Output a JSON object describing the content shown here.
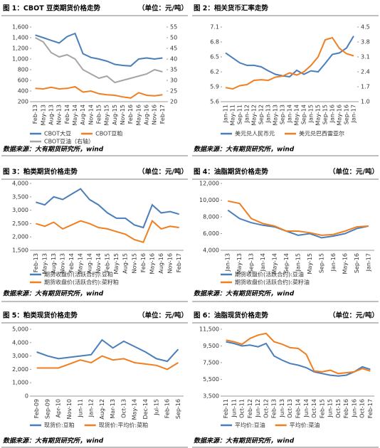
{
  "chart_data": [
    {
      "type": "line",
      "title": "图 1：CBOT 豆类期货价格走势",
      "unit": "（单位：元/吨）",
      "source": "数据来源：大有期货研究所，wind",
      "categories": [
        "Feb-13",
        "May-13",
        "Aug-13",
        "Nov-13",
        "Feb-14",
        "May-14",
        "Aug-14",
        "Nov-14",
        "Feb-15",
        "May-15",
        "Aug-15",
        "Nov-15",
        "Feb-16",
        "May-16",
        "Aug-16",
        "Nov-16",
        "Feb-17"
      ],
      "ylim": [
        200,
        1600
      ],
      "yticks": [
        200,
        400,
        600,
        800,
        {
          "value": 1000,
          "label": "1,000"
        },
        {
          "value": 1200,
          "label": "1,200"
        },
        {
          "value": 1400,
          "label": "1,400"
        },
        {
          "value": 1600,
          "label": "1,600"
        }
      ],
      "y2lim": [
        20,
        55
      ],
      "y2ticks": [
        20,
        25,
        30,
        35,
        40,
        45,
        50,
        55
      ],
      "series": [
        {
          "name": "CBOT大豆",
          "color": "#4a7ebb",
          "values": [
            1450,
            1400,
            1350,
            1300,
            1420,
            1480,
            1100,
            1030,
            1000,
            960,
            900,
            880,
            870,
            1000,
            1020,
            1000,
            1020
          ]
        },
        {
          "name": "CBOT豆粕",
          "color": "#f07f22",
          "values": [
            450,
            440,
            470,
            440,
            450,
            480,
            380,
            400,
            350,
            330,
            320,
            290,
            270,
            370,
            320,
            310,
            330
          ]
        },
        {
          "name": "CBOT豆油（右轴）",
          "color": "#a5a5a5",
          "axis": "y2",
          "values": [
            50,
            48,
            43,
            41,
            42,
            40,
            35,
            33,
            31,
            32,
            29,
            30,
            31,
            32,
            33,
            35,
            34
          ]
        }
      ]
    },
    {
      "type": "line",
      "title": "图 2：相关货币汇率走势",
      "source": "数据来源：大有期货研究所，wind",
      "categories": [
        "Jan-11",
        "May-11",
        "Sep-11",
        "Jan-12",
        "May-12",
        "Sep-12",
        "Jan-13",
        "May-13",
        "Sep-13",
        "Jan-14",
        "May-14",
        "Sep-14",
        "Jan-15",
        "May-15",
        "Sep-15",
        "Jan-16",
        "May-16",
        "Sep-16",
        "Jan-17"
      ],
      "ylim": [
        5.6,
        7.1
      ],
      "yticks": [
        5.6,
        5.9,
        6.2,
        6.5,
        6.8,
        7.1
      ],
      "y2lim": [
        1,
        4.5
      ],
      "y2ticks": [
        {
          "value": 1,
          "label": "1.0"
        },
        1.7,
        2.4,
        3.1,
        3.8,
        4.5
      ],
      "series": [
        {
          "name": "美元兑人民币元",
          "color": "#4a7ebb",
          "values": [
            6.58,
            6.48,
            6.38,
            6.33,
            6.33,
            6.3,
            6.22,
            6.15,
            6.12,
            6.1,
            6.23,
            6.15,
            6.22,
            6.2,
            6.37,
            6.55,
            6.58,
            6.68,
            6.92
          ]
        },
        {
          "name": "美元兑巴西雷亚尔",
          "color": "#f07f22",
          "axis": "y2",
          "values": [
            1.66,
            1.6,
            1.75,
            1.8,
            2,
            2.03,
            2,
            2.15,
            2.2,
            2.35,
            2.25,
            2.4,
            2.7,
            3.1,
            3.9,
            4,
            3.5,
            3.25,
            3.15
          ]
        }
      ]
    },
    {
      "type": "line",
      "title": "图 3：粕类期货价格走势",
      "unit": "（单位：元/吨）",
      "source": "数据来源：大有期货研究所，wind",
      "categories": [
        "Feb-13",
        "May-13",
        "Aug-13",
        "Nov-13",
        "Feb-14",
        "May-14",
        "Aug-14",
        "Nov-14",
        "Feb-15",
        "May-15",
        "Aug-15",
        "Nov-15",
        "Feb-16",
        "May-16",
        "Aug-16",
        "Nov-16",
        "Feb-17"
      ],
      "ylim": [
        1500,
        4000
      ],
      "yticks": [
        {
          "value": 1500,
          "label": "1,500"
        },
        {
          "value": 2000,
          "label": "2,000"
        },
        {
          "value": 2500,
          "label": "2,500"
        },
        {
          "value": 3000,
          "label": "3,000"
        },
        {
          "value": 3500,
          "label": "3,500"
        },
        {
          "value": 4000,
          "label": "4,000"
        }
      ],
      "series": [
        {
          "name": "期货收盘价(活跃合约):豆粕",
          "color": "#4a7ebb",
          "values": [
            3300,
            3200,
            3500,
            3400,
            3600,
            3800,
            3400,
            3200,
            2900,
            2700,
            2700,
            2450,
            2350,
            3200,
            2900,
            2950,
            2850
          ]
        },
        {
          "name": "期货收盘价(活跃合约):菜籽粕",
          "color": "#f07f22",
          "values": [
            2500,
            2400,
            2550,
            2300,
            2450,
            2600,
            2500,
            2350,
            2300,
            2200,
            2100,
            1900,
            1800,
            2600,
            2300,
            2400,
            2350
          ]
        }
      ]
    },
    {
      "type": "line",
      "title": "图 4：油脂期货价格走势",
      "unit": "（单位：元/吨）",
      "source": "数据来源：大有期货研究所，wind",
      "categories": [
        "Jan-13",
        "May-13",
        "Sep-13",
        "Jan-14",
        "May-14",
        "Sep-14",
        "Jan-15",
        "May-15",
        "Sep-15",
        "Jan-16",
        "May-16",
        "Sep-16",
        "Jan-17"
      ],
      "ylim": [
        4000,
        12000
      ],
      "yticks": [
        {
          "value": 4000,
          "label": "4,000"
        },
        {
          "value": 6000,
          "label": "6,000"
        },
        {
          "value": 8000,
          "label": "8,000"
        },
        {
          "value": 10000,
          "label": "10,000"
        },
        {
          "value": 12000,
          "label": "12,000"
        }
      ],
      "series": [
        {
          "name": "期货收盘价(活跃合约):豆油",
          "color": "#4a7ebb",
          "values": [
            8800,
            7800,
            7300,
            7000,
            6800,
            6300,
            5800,
            6000,
            5500,
            5700,
            6000,
            6600,
            6900
          ]
        },
        {
          "name": "期货收盘价(活跃合约):菜籽油",
          "color": "#f07f22",
          "values": [
            9900,
            9600,
            7800,
            7200,
            6900,
            6300,
            6300,
            6100,
            5800,
            5900,
            6300,
            6800,
            6900
          ]
        }
      ]
    },
    {
      "type": "line",
      "title": "图 5：粕类现货价格走势",
      "unit": "（单位：元/吨）",
      "source": "数据来源：大有期货研究所，wind",
      "categories": [
        "Feb-09",
        "Sep-09",
        "Apr-10",
        "Nov-10",
        "Jun-11",
        "Jan-12",
        "Aug-12",
        "Mar-13",
        "Oct-13",
        "May-14",
        "Dec-14",
        "Jul-15",
        "Feb-16",
        "Sep-16"
      ],
      "ylim": [
        0,
        5000
      ],
      "yticks": [
        0,
        {
          "value": 1000,
          "label": "1,000"
        },
        {
          "value": 2000,
          "label": "2,000"
        },
        {
          "value": 3000,
          "label": "3,000"
        },
        {
          "value": 4000,
          "label": "4,000"
        },
        {
          "value": 5000,
          "label": "5,000"
        }
      ],
      "series": [
        {
          "name": "现货价:豆粕",
          "color": "#4a7ebb",
          "values": [
            3300,
            3000,
            2800,
            2900,
            3000,
            3100,
            4200,
            3600,
            4100,
            3700,
            3300,
            2800,
            2600,
            3500
          ]
        },
        {
          "name": "现货价:平均价:菜粕",
          "color": "#f07f22",
          "values": [
            2100,
            2100,
            2100,
            2400,
            2700,
            2500,
            3000,
            2700,
            2800,
            2500,
            2400,
            2300,
            2000,
            2500
          ]
        }
      ]
    },
    {
      "type": "line",
      "title": "图 6：油脂现货价格走势",
      "unit": "（单位：元/吨）",
      "source": "数据来源：大有期货研究所，wind",
      "categories": [
        "Feb-11",
        "Jun-11",
        "Oct-11",
        "Feb-12",
        "Jun-12",
        "Oct-12",
        "Feb-13",
        "Jun-13",
        "Oct-13",
        "Feb-14",
        "Jun-14",
        "Oct-14",
        "Feb-15",
        "Jun-15",
        "Oct-15",
        "Feb-16",
        "Jun-16",
        "Oct-16",
        "Feb-17"
      ],
      "ylim": [
        3500,
        11500
      ],
      "yticks": [
        {
          "value": 3500,
          "label": "3,500"
        },
        {
          "value": 5500,
          "label": "5,500"
        },
        {
          "value": 7500,
          "label": "7,500"
        },
        {
          "value": 9500,
          "label": "9,500"
        },
        {
          "value": 11500,
          "label": "11,500"
        }
      ],
      "series": [
        {
          "name": "平均价:豆油",
          "color": "#4a7ebb",
          "values": [
            10000,
            9800,
            9500,
            9600,
            9400,
            9800,
            8300,
            7800,
            7400,
            7200,
            6900,
            6400,
            6200,
            6000,
            5900,
            6000,
            6400,
            7000,
            6700
          ]
        },
        {
          "name": "平均价:菜油",
          "color": "#f07f22",
          "values": [
            10200,
            10000,
            9700,
            10400,
            10800,
            11000,
            10000,
            9700,
            9300,
            9200,
            8500,
            6500,
            6400,
            6600,
            6200,
            6300,
            6400,
            6800,
            6500
          ]
        }
      ]
    }
  ]
}
